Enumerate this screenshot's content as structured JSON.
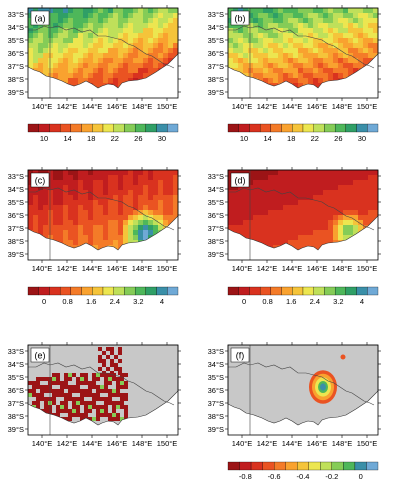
{
  "panels": [
    {
      "label": "(a)",
      "lat_labels": [
        "33°S",
        "34°S",
        "35°S",
        "36°S",
        "37°S",
        "38°S",
        "39°S"
      ],
      "lon_labels": [
        "140°E",
        "142°E",
        "144°E",
        "146°E",
        "148°E",
        "150°E"
      ]
    },
    {
      "label": "(b)",
      "lat_labels": [
        "33°S",
        "34°S",
        "35°S",
        "36°S",
        "37°S",
        "38°S",
        "39°S"
      ],
      "lon_labels": [
        "140°E",
        "142°E",
        "144°E",
        "146°E",
        "148°E",
        "150°E"
      ]
    },
    {
      "label": "(c)",
      "lat_labels": [
        "33°S",
        "34°S",
        "35°S",
        "36°S",
        "37°S",
        "38°S",
        "39°S"
      ],
      "lon_labels": [
        "140°E",
        "142°E",
        "144°E",
        "146°E",
        "148°E",
        "150°E"
      ]
    },
    {
      "label": "(d)",
      "lat_labels": [
        "33°S",
        "34°S",
        "35°S",
        "36°S",
        "37°S",
        "38°S",
        "39°S"
      ],
      "lon_labels": [
        "140°E",
        "142°E",
        "144°E",
        "146°E",
        "148°E",
        "150°E"
      ]
    },
    {
      "label": "(e)",
      "lat_labels": [
        "33°S",
        "34°S",
        "35°S",
        "36°S",
        "37°S",
        "38°S",
        "39°S"
      ],
      "lon_labels": [
        "140°E",
        "142°E",
        "144°E",
        "146°E",
        "148°E",
        "150°E"
      ]
    },
    {
      "label": "(f)",
      "lat_labels": [
        "33°S",
        "34°S",
        "35°S",
        "36°S",
        "37°S",
        "38°S",
        "39°S"
      ],
      "lon_labels": [
        "140°E",
        "142°E",
        "144°E",
        "146°E",
        "148°E",
        "150°E"
      ]
    }
  ],
  "colorbars": [
    {
      "ticks": [
        "10",
        "14",
        "18",
        "22",
        "26",
        "30"
      ],
      "colors": [
        "#9c1416",
        "#c01d1f",
        "#d9321f",
        "#ea5322",
        "#f47b28",
        "#f9a22f",
        "#f5c43a",
        "#ece650",
        "#bfe05a",
        "#85cc57",
        "#4eb75a",
        "#2f9f66",
        "#3a8fa8",
        "#6fa9d6"
      ]
    },
    {
      "ticks": [
        "10",
        "14",
        "18",
        "22",
        "26",
        "30"
      ],
      "colors": [
        "#9c1416",
        "#c01d1f",
        "#d9321f",
        "#ea5322",
        "#f47b28",
        "#f9a22f",
        "#f5c43a",
        "#ece650",
        "#bfe05a",
        "#85cc57",
        "#4eb75a",
        "#2f9f66",
        "#3a8fa8",
        "#6fa9d6"
      ]
    },
    {
      "ticks": [
        "0",
        "0.8",
        "1.6",
        "2.4",
        "3.2",
        "4"
      ],
      "colors": [
        "#9c1416",
        "#c01d1f",
        "#d9321f",
        "#ea5322",
        "#f47b28",
        "#f9a22f",
        "#f5c43a",
        "#ece650",
        "#bfe05a",
        "#85cc57",
        "#4eb75a",
        "#2f9f66",
        "#3a8fa8",
        "#6fa9d6"
      ]
    },
    {
      "ticks": [
        "0",
        "0.8",
        "1.6",
        "2.4",
        "3.2",
        "4"
      ],
      "colors": [
        "#9c1416",
        "#c01d1f",
        "#d9321f",
        "#ea5322",
        "#f47b28",
        "#f9a22f",
        "#f5c43a",
        "#ece650",
        "#bfe05a",
        "#85cc57",
        "#4eb75a",
        "#2f9f66",
        "#3a8fa8",
        "#6fa9d6"
      ]
    },
    {
      "ticks": [
        "-0.8",
        "-0.6",
        "-0.4",
        "-0.2",
        "0"
      ],
      "colors": [
        "#9c1416",
        "#c01d1f",
        "#d9321f",
        "#ea5322",
        "#f47b28",
        "#f9a22f",
        "#f5c43a",
        "#ece650",
        "#bfe05a",
        "#85cc57",
        "#4eb75a",
        "#3a8fa8",
        "#6fa9d6"
      ]
    }
  ],
  "colors": {
    "land_gray": "#c8c8c8",
    "ocean": "#ffffff",
    "border": "#444444"
  }
}
